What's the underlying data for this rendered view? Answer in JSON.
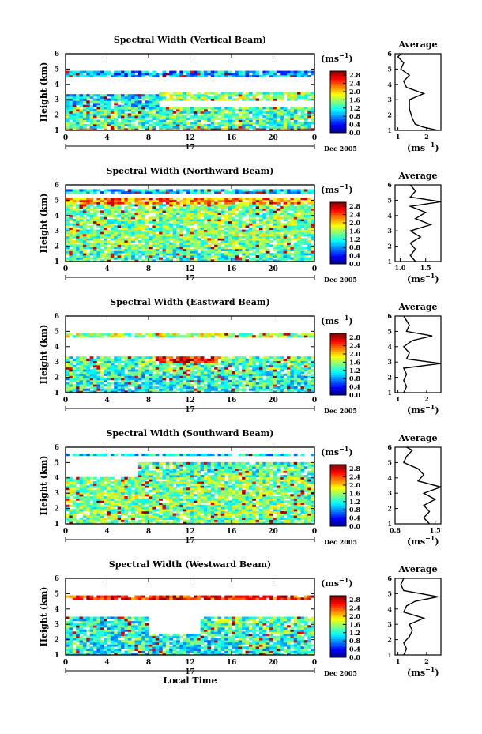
{
  "chart_data": [
    {
      "type": "heatmap",
      "title": "Spectral Width (Vertical Beam)",
      "ylabel": "Height (km)",
      "x_ticks": [
        "0",
        "4",
        "8",
        "12",
        "16",
        "20",
        "0"
      ],
      "y_ticks": [
        "1",
        "2",
        "3",
        "4",
        "5",
        "6"
      ],
      "xlim": [
        0,
        24
      ],
      "ylim": [
        1,
        6
      ],
      "day_label": "17",
      "date_label": "Dec 2005",
      "colorbar": {
        "label": "(ms",
        "exponent": "−1",
        "ticks": [
          "2.8",
          "2.4",
          "2.0",
          "1.6",
          "1.2",
          "0.8",
          "0.4",
          "0.0"
        ],
        "range": [
          0,
          3
        ]
      },
      "layers": [
        {
          "h0": 1.0,
          "h1": 1.3,
          "t0": 0,
          "t1": 24,
          "level": 0.8
        },
        {
          "h0": 1.2,
          "h1": 2.5,
          "t0": 0,
          "t1": 24,
          "level": 0.45
        },
        {
          "h0": 2.5,
          "h1": 3.4,
          "t0": 0,
          "t1": 9,
          "level": 0.35
        },
        {
          "h0": 3.0,
          "h1": 3.5,
          "t0": 9,
          "t1": 24,
          "level": 0.5
        },
        {
          "h0": 4.5,
          "h1": 4.9,
          "t0": 0,
          "t1": 24,
          "level": 0.3
        }
      ],
      "average": {
        "title": "Average",
        "xlabel": "(ms",
        "x_ticks": [
          "1",
          "2"
        ],
        "xlim": [
          0.9,
          2.5
        ],
        "profile": [
          [
            1.0,
            2.4
          ],
          [
            1.2,
            1.9
          ],
          [
            1.4,
            1.6
          ],
          [
            1.8,
            1.5
          ],
          [
            2.4,
            1.4
          ],
          [
            3.0,
            1.4
          ],
          [
            3.4,
            1.9
          ],
          [
            3.8,
            1.3
          ],
          [
            4.2,
            1.2
          ],
          [
            4.6,
            1.4
          ],
          [
            5.0,
            1.1
          ],
          [
            5.4,
            1.2
          ],
          [
            5.8,
            1.0
          ],
          [
            6.0,
            1.1
          ]
        ]
      }
    },
    {
      "type": "heatmap",
      "title": "Spectral Width (Northward Beam)",
      "ylabel": "Height (km)",
      "x_ticks": [
        "0",
        "4",
        "8",
        "12",
        "16",
        "20",
        "0"
      ],
      "y_ticks": [
        "1",
        "2",
        "3",
        "4",
        "5",
        "6"
      ],
      "xlim": [
        0,
        24
      ],
      "ylim": [
        1,
        6
      ],
      "day_label": "17",
      "date_label": "Dec 2005",
      "colorbar": {
        "label": "(ms",
        "exponent": "−1",
        "ticks": [
          "2.8",
          "2.4",
          "2.0",
          "1.6",
          "1.2",
          "0.8",
          "0.4",
          "0.0"
        ],
        "range": [
          0,
          3
        ]
      },
      "layers": [
        {
          "h0": 1.0,
          "h1": 2.0,
          "t0": 0,
          "t1": 24,
          "level": 0.45
        },
        {
          "h0": 2.0,
          "h1": 4.8,
          "t0": 0,
          "t1": 24,
          "level": 0.5
        },
        {
          "h0": 4.8,
          "h1": 5.1,
          "t0": 0,
          "t1": 24,
          "level": 0.75
        },
        {
          "h0": 5.5,
          "h1": 5.7,
          "t0": 0,
          "t1": 24,
          "level": 0.35
        }
      ],
      "average": {
        "title": "Average",
        "xlabel": "(ms",
        "x_ticks": [
          "1.0",
          "1.5"
        ],
        "xlim": [
          0.9,
          1.8
        ],
        "profile": [
          [
            1.0,
            1.3
          ],
          [
            1.4,
            1.2
          ],
          [
            1.8,
            1.3
          ],
          [
            2.2,
            1.2
          ],
          [
            2.6,
            1.4
          ],
          [
            3.0,
            1.2
          ],
          [
            3.4,
            1.6
          ],
          [
            3.8,
            1.3
          ],
          [
            4.2,
            1.5
          ],
          [
            4.6,
            1.2
          ],
          [
            4.9,
            1.8
          ],
          [
            5.2,
            1.2
          ],
          [
            5.6,
            1.3
          ],
          [
            6.0,
            1.2
          ]
        ]
      }
    },
    {
      "type": "heatmap",
      "title": "Spectral Width (Eastward Beam)",
      "ylabel": "Height (km)",
      "x_ticks": [
        "0",
        "4",
        "8",
        "12",
        "16",
        "20",
        "0"
      ],
      "y_ticks": [
        "1",
        "2",
        "3",
        "4",
        "5",
        "6"
      ],
      "xlim": [
        0,
        24
      ],
      "ylim": [
        1,
        6
      ],
      "day_label": "17",
      "date_label": "Dec 2005",
      "colorbar": {
        "label": "(ms",
        "exponent": "−1",
        "ticks": [
          "2.8",
          "2.4",
          "2.0",
          "1.6",
          "1.2",
          "0.8",
          "0.4",
          "0.0"
        ],
        "range": [
          0,
          3
        ]
      },
      "layers": [
        {
          "h0": 1.0,
          "h1": 2.2,
          "t0": 0,
          "t1": 24,
          "level": 0.4
        },
        {
          "h0": 2.2,
          "h1": 3.3,
          "t0": 0,
          "t1": 24,
          "level": 0.45
        },
        {
          "h0": 2.9,
          "h1": 3.3,
          "t0": 9,
          "t1": 15,
          "level": 0.85
        },
        {
          "h0": 4.6,
          "h1": 4.9,
          "t0": 0,
          "t1": 24,
          "level": 0.55
        }
      ],
      "average": {
        "title": "Average",
        "xlabel": "(ms",
        "x_ticks": [
          "1",
          "2"
        ],
        "xlim": [
          0.9,
          2.5
        ],
        "profile": [
          [
            1.0,
            1.2
          ],
          [
            1.4,
            1.3
          ],
          [
            1.8,
            1.2
          ],
          [
            2.2,
            1.3
          ],
          [
            2.6,
            1.2
          ],
          [
            2.9,
            2.5
          ],
          [
            3.2,
            1.3
          ],
          [
            3.6,
            1.4
          ],
          [
            4.0,
            1.2
          ],
          [
            4.4,
            1.5
          ],
          [
            4.7,
            2.2
          ],
          [
            5.0,
            1.3
          ],
          [
            5.4,
            1.4
          ],
          [
            6.0,
            1.2
          ]
        ]
      }
    },
    {
      "type": "heatmap",
      "title": "Spectral Width (Southward Beam)",
      "ylabel": "Height (km)",
      "x_ticks": [
        "0",
        "4",
        "8",
        "12",
        "16",
        "20",
        "0"
      ],
      "y_ticks": [
        "1",
        "2",
        "3",
        "4",
        "5",
        "6"
      ],
      "xlim": [
        0,
        24
      ],
      "ylim": [
        1,
        6
      ],
      "day_label": "17",
      "date_label": "Dec 2005",
      "colorbar": {
        "label": "(ms",
        "exponent": "−1",
        "ticks": [
          "2.8",
          "2.4",
          "2.0",
          "1.6",
          "1.2",
          "0.8",
          "0.4",
          "0.0"
        ],
        "range": [
          0,
          3
        ]
      },
      "layers": [
        {
          "h0": 1.0,
          "h1": 2.4,
          "t0": 0,
          "t1": 24,
          "level": 0.5
        },
        {
          "h0": 2.4,
          "h1": 4.0,
          "t0": 0,
          "t1": 24,
          "level": 0.5
        },
        {
          "h0": 4.0,
          "h1": 5.0,
          "t0": 7,
          "t1": 24,
          "level": 0.45
        },
        {
          "h0": 5.4,
          "h1": 5.6,
          "t0": 0,
          "t1": 24,
          "level": 0.35
        }
      ],
      "average": {
        "title": "Average",
        "xlabel": "(ms",
        "x_ticks": [
          "0.8",
          "1.5"
        ],
        "xlim": [
          0.8,
          1.6
        ],
        "profile": [
          [
            1.0,
            1.4
          ],
          [
            1.4,
            1.3
          ],
          [
            1.8,
            1.4
          ],
          [
            2.2,
            1.3
          ],
          [
            2.6,
            1.5
          ],
          [
            3.0,
            1.3
          ],
          [
            3.4,
            1.6
          ],
          [
            3.8,
            1.2
          ],
          [
            4.2,
            1.3
          ],
          [
            4.6,
            1.2
          ],
          [
            5.0,
            0.95
          ],
          [
            5.4,
            1.0
          ],
          [
            5.8,
            1.1
          ],
          [
            6.0,
            1.0
          ]
        ]
      }
    },
    {
      "type": "heatmap",
      "title": "Spectral Width (Westward Beam)",
      "ylabel": "Height (km)",
      "x_ticks": [
        "0",
        "4",
        "8",
        "12",
        "16",
        "20",
        "0"
      ],
      "y_ticks": [
        "1",
        "2",
        "3",
        "4",
        "5",
        "6"
      ],
      "xlim": [
        0,
        24
      ],
      "ylim": [
        1,
        6
      ],
      "day_label": "17",
      "date_label": "Dec 2005",
      "xlabel": "Local Time",
      "colorbar": {
        "label": "(ms",
        "exponent": "−1",
        "ticks": [
          "2.8",
          "2.4",
          "2.0",
          "1.6",
          "1.2",
          "0.8",
          "0.4",
          "0.0"
        ],
        "range": [
          0,
          3
        ]
      },
      "layers": [
        {
          "h0": 1.0,
          "h1": 2.4,
          "t0": 0,
          "t1": 24,
          "level": 0.4
        },
        {
          "h0": 2.4,
          "h1": 3.5,
          "t0": 0,
          "t1": 8,
          "level": 0.4
        },
        {
          "h0": 2.4,
          "h1": 3.5,
          "t0": 13,
          "t1": 24,
          "level": 0.45
        },
        {
          "h0": 4.6,
          "h1": 4.9,
          "t0": 0,
          "t1": 24,
          "level": 0.85
        }
      ],
      "average": {
        "title": "Average",
        "xlabel": "(ms",
        "x_ticks": [
          "1",
          "2"
        ],
        "xlim": [
          0.9,
          2.5
        ],
        "profile": [
          [
            1.0,
            1.2
          ],
          [
            1.4,
            1.3
          ],
          [
            1.8,
            1.2
          ],
          [
            2.2,
            1.4
          ],
          [
            2.6,
            1.5
          ],
          [
            3.0,
            1.4
          ],
          [
            3.4,
            1.9
          ],
          [
            3.8,
            1.2
          ],
          [
            4.2,
            1.3
          ],
          [
            4.5,
            1.6
          ],
          [
            4.8,
            2.4
          ],
          [
            5.2,
            1.2
          ],
          [
            5.6,
            1.1
          ],
          [
            6.0,
            1.2
          ]
        ]
      }
    }
  ]
}
